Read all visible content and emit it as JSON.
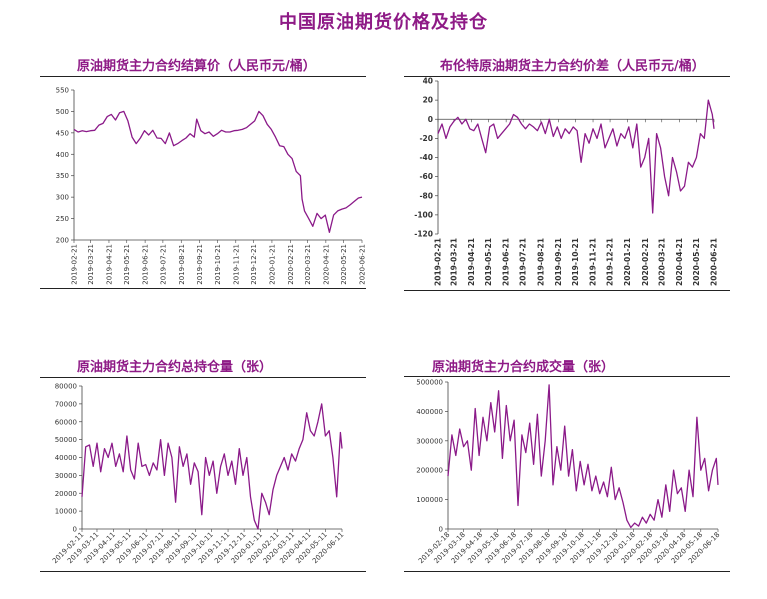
{
  "page": {
    "title": "中国原油期货价格及持仓",
    "title_color": "#8e1a86",
    "line_color": "#8b1a89"
  },
  "chart_data": [
    {
      "id": "settle",
      "type": "line",
      "title": "原油期货主力合约结算价（人民币元/桶）",
      "ylim": [
        200,
        550
      ],
      "yticks": [
        200,
        250,
        300,
        350,
        400,
        450,
        500,
        550
      ],
      "xlim": [
        "2019-02-21",
        "2020-06-21"
      ],
      "xtick_labels": [
        "2019-02-21",
        "2019-03-21",
        "2019-04-21",
        "2019-05-21",
        "2019-06-21",
        "2019-07-21",
        "2019-08-21",
        "2019-09-21",
        "2019-10-21",
        "2019-11-21",
        "2019-12-21",
        "2020-01-21",
        "2020-02-21",
        "2020-03-21",
        "2020-04-21",
        "2020-05-21",
        "2020-06-21"
      ],
      "grid": false,
      "series": [
        {
          "x": [
            "2019-02-21",
            "2019-02-28",
            "2019-03-07",
            "2019-03-14",
            "2019-03-21",
            "2019-03-28",
            "2019-04-04",
            "2019-04-11",
            "2019-04-18",
            "2019-04-25",
            "2019-05-02",
            "2019-05-09",
            "2019-05-16",
            "2019-05-23",
            "2019-05-30",
            "2019-06-06",
            "2019-06-13",
            "2019-06-20",
            "2019-06-27",
            "2019-07-04",
            "2019-07-11",
            "2019-07-18",
            "2019-07-25",
            "2019-08-01",
            "2019-08-08",
            "2019-08-15",
            "2019-08-22",
            "2019-08-29",
            "2019-09-05",
            "2019-09-12",
            "2019-09-16",
            "2019-09-23",
            "2019-09-30",
            "2019-10-07",
            "2019-10-14",
            "2019-10-21",
            "2019-10-28",
            "2019-11-04",
            "2019-11-11",
            "2019-11-18",
            "2019-11-25",
            "2019-12-02",
            "2019-12-09",
            "2019-12-16",
            "2019-12-23",
            "2019-12-30",
            "2020-01-06",
            "2020-01-13",
            "2020-01-20",
            "2020-01-27",
            "2020-02-03",
            "2020-02-10",
            "2020-02-17",
            "2020-02-24",
            "2020-03-02",
            "2020-03-09",
            "2020-03-12",
            "2020-03-16",
            "2020-03-23",
            "2020-03-30",
            "2020-04-06",
            "2020-04-13",
            "2020-04-20",
            "2020-04-27",
            "2020-05-04",
            "2020-05-11",
            "2020-05-18",
            "2020-05-25",
            "2020-06-01",
            "2020-06-08",
            "2020-06-15",
            "2020-06-21"
          ],
          "y": [
            458,
            452,
            455,
            453,
            455,
            456,
            468,
            472,
            488,
            493,
            480,
            497,
            500,
            478,
            440,
            425,
            438,
            455,
            445,
            456,
            438,
            437,
            425,
            450,
            420,
            425,
            432,
            438,
            448,
            440,
            482,
            455,
            448,
            452,
            442,
            448,
            456,
            452,
            452,
            455,
            456,
            458,
            462,
            470,
            478,
            500,
            490,
            470,
            458,
            440,
            420,
            418,
            400,
            390,
            360,
            350,
            295,
            268,
            250,
            232,
            262,
            250,
            258,
            218,
            258,
            268,
            272,
            275,
            282,
            290,
            298,
            300
          ]
        }
      ]
    },
    {
      "id": "spread",
      "type": "line",
      "title": "布伦特原油期货主力合约价差（人民币元/桶）",
      "ylim": [
        -120,
        40
      ],
      "yticks": [
        -120,
        -100,
        -80,
        -60,
        -40,
        -20,
        0,
        20,
        40
      ],
      "xlim": [
        "2019-02-21",
        "2020-06-21"
      ],
      "xtick_labels": [
        "2019-02-21",
        "2019-03-21",
        "2019-04-21",
        "2019-05-21",
        "2019-06-21",
        "2019-07-21",
        "2019-08-21",
        "2019-09-21",
        "2019-10-21",
        "2019-11-21",
        "2019-12-21",
        "2020-01-21",
        "2020-02-21",
        "2020-03-21",
        "2020-04-21",
        "2020-05-21",
        "2020-06-21"
      ],
      "grid": false,
      "series": [
        {
          "x": [
            "2019-02-21",
            "2019-02-28",
            "2019-03-07",
            "2019-03-14",
            "2019-03-21",
            "2019-03-28",
            "2019-04-04",
            "2019-04-11",
            "2019-04-18",
            "2019-04-25",
            "2019-05-02",
            "2019-05-09",
            "2019-05-16",
            "2019-05-23",
            "2019-05-30",
            "2019-06-06",
            "2019-06-13",
            "2019-06-20",
            "2019-06-27",
            "2019-07-04",
            "2019-07-11",
            "2019-07-18",
            "2019-07-25",
            "2019-08-01",
            "2019-08-08",
            "2019-08-15",
            "2019-08-22",
            "2019-08-29",
            "2019-09-05",
            "2019-09-12",
            "2019-09-19",
            "2019-09-26",
            "2019-10-03",
            "2019-10-10",
            "2019-10-17",
            "2019-10-24",
            "2019-10-31",
            "2019-11-07",
            "2019-11-14",
            "2019-11-21",
            "2019-11-28",
            "2019-12-05",
            "2019-12-12",
            "2019-12-19",
            "2019-12-26",
            "2020-01-02",
            "2020-01-09",
            "2020-01-16",
            "2020-01-23",
            "2020-01-30",
            "2020-02-06",
            "2020-02-13",
            "2020-02-20",
            "2020-02-27",
            "2020-03-05",
            "2020-03-12",
            "2020-03-19",
            "2020-03-26",
            "2020-04-02",
            "2020-04-09",
            "2020-04-16",
            "2020-04-23",
            "2020-04-30",
            "2020-05-07",
            "2020-05-14",
            "2020-05-21",
            "2020-05-28",
            "2020-06-04",
            "2020-06-11",
            "2020-06-18",
            "2020-06-21"
          ],
          "y": [
            -15,
            -5,
            -20,
            -8,
            -2,
            2,
            -5,
            0,
            -10,
            -12,
            -5,
            -20,
            -35,
            -8,
            -5,
            -20,
            -15,
            -10,
            -5,
            5,
            2,
            -5,
            -10,
            -5,
            -8,
            -12,
            -3,
            -15,
            0,
            -18,
            -8,
            -20,
            -10,
            -15,
            -8,
            -12,
            -45,
            -15,
            -25,
            -10,
            -20,
            -5,
            -30,
            -20,
            -10,
            -28,
            -15,
            -20,
            -8,
            -30,
            -5,
            -50,
            -40,
            -20,
            -98,
            -15,
            -30,
            -60,
            -80,
            -40,
            -55,
            -75,
            -70,
            -45,
            -50,
            -40,
            -15,
            -20,
            20,
            5,
            -10
          ]
        }
      ]
    },
    {
      "id": "oi",
      "type": "line",
      "title": "原油期货主力合约总持仓量（张）",
      "ylim": [
        0,
        80000
      ],
      "yticks": [
        0,
        10000,
        20000,
        30000,
        40000,
        50000,
        60000,
        70000,
        80000
      ],
      "xlim": [
        "2019-02-11",
        "2020-06-11"
      ],
      "xtick_labels": [
        "2019-02-11",
        "2019-03-11",
        "2019-04-11",
        "2019-05-11",
        "2019-06-11",
        "2019-07-11",
        "2019-08-11",
        "2019-09-11",
        "2019-10-11",
        "2019-11-11",
        "2019-12-11",
        "2020-01-11",
        "2020-02-11",
        "2020-03-11",
        "2020-04-11",
        "2020-05-11",
        "2020-06-11"
      ],
      "grid": false,
      "series": [
        {
          "x": [
            "2019-02-11",
            "2019-02-18",
            "2019-02-25",
            "2019-03-04",
            "2019-03-11",
            "2019-03-18",
            "2019-03-25",
            "2019-04-01",
            "2019-04-08",
            "2019-04-15",
            "2019-04-22",
            "2019-04-29",
            "2019-05-06",
            "2019-05-13",
            "2019-05-20",
            "2019-05-27",
            "2019-06-03",
            "2019-06-10",
            "2019-06-17",
            "2019-06-24",
            "2019-07-01",
            "2019-07-08",
            "2019-07-15",
            "2019-07-22",
            "2019-07-29",
            "2019-08-05",
            "2019-08-12",
            "2019-08-19",
            "2019-08-26",
            "2019-09-02",
            "2019-09-09",
            "2019-09-16",
            "2019-09-23",
            "2019-09-30",
            "2019-10-07",
            "2019-10-14",
            "2019-10-21",
            "2019-10-28",
            "2019-11-04",
            "2019-11-11",
            "2019-11-18",
            "2019-11-25",
            "2019-12-02",
            "2019-12-09",
            "2019-12-16",
            "2019-12-23",
            "2019-12-30",
            "2020-01-06",
            "2020-01-13",
            "2020-01-20",
            "2020-01-27",
            "2020-02-03",
            "2020-02-10",
            "2020-02-17",
            "2020-02-24",
            "2020-03-02",
            "2020-03-09",
            "2020-03-16",
            "2020-03-23",
            "2020-03-30",
            "2020-04-06",
            "2020-04-13",
            "2020-04-20",
            "2020-04-27",
            "2020-05-04",
            "2020-05-11",
            "2020-05-18",
            "2020-05-25",
            "2020-06-01",
            "2020-06-08",
            "2020-06-11"
          ],
          "y": [
            18000,
            46000,
            47000,
            35000,
            48000,
            32000,
            45000,
            40000,
            48000,
            35000,
            42000,
            32000,
            52000,
            33000,
            28000,
            48000,
            35000,
            36000,
            30000,
            37000,
            33000,
            50000,
            30000,
            48000,
            40000,
            15000,
            46000,
            35000,
            42000,
            25000,
            37000,
            32000,
            8000,
            40000,
            30000,
            38000,
            20000,
            35000,
            42000,
            30000,
            38000,
            25000,
            45000,
            30000,
            40000,
            18000,
            5000,
            0,
            20000,
            15000,
            8000,
            22000,
            30000,
            35000,
            40000,
            33000,
            42000,
            38000,
            45000,
            50000,
            65000,
            55000,
            52000,
            60000,
            70000,
            52000,
            55000,
            40000,
            18000,
            54000,
            45000
          ]
        }
      ]
    },
    {
      "id": "volume",
      "type": "line",
      "title": "原油期货主力合约成交量（张）",
      "ylim": [
        0,
        500000
      ],
      "yticks": [
        0,
        100000,
        200000,
        300000,
        400000,
        500000
      ],
      "xlim": [
        "2019-02-18",
        "2020-06-18"
      ],
      "xtick_labels": [
        "2019-02-18",
        "2019-03-18",
        "2019-04-18",
        "2019-05-18",
        "2019-06-18",
        "2019-07-18",
        "2019-08-18",
        "2019-09-18",
        "2019-10-18",
        "2019-11-18",
        "2019-12-18",
        "2020-01-18",
        "2020-02-18",
        "2020-03-18",
        "2020-04-18",
        "2020-05-18",
        "2020-06-18"
      ],
      "grid": false,
      "series": [
        {
          "x": [
            "2019-02-18",
            "2019-02-25",
            "2019-03-04",
            "2019-03-11",
            "2019-03-18",
            "2019-03-25",
            "2019-04-01",
            "2019-04-08",
            "2019-04-15",
            "2019-04-22",
            "2019-04-29",
            "2019-05-06",
            "2019-05-13",
            "2019-05-20",
            "2019-05-27",
            "2019-06-03",
            "2019-06-10",
            "2019-06-17",
            "2019-06-24",
            "2019-07-01",
            "2019-07-08",
            "2019-07-15",
            "2019-07-22",
            "2019-07-29",
            "2019-08-05",
            "2019-08-12",
            "2019-08-19",
            "2019-08-26",
            "2019-09-02",
            "2019-09-09",
            "2019-09-16",
            "2019-09-23",
            "2019-09-30",
            "2019-10-07",
            "2019-10-14",
            "2019-10-21",
            "2019-10-28",
            "2019-11-04",
            "2019-11-11",
            "2019-11-18",
            "2019-11-25",
            "2019-12-02",
            "2019-12-09",
            "2019-12-16",
            "2019-12-23",
            "2019-12-30",
            "2020-01-06",
            "2020-01-13",
            "2020-01-20",
            "2020-01-27",
            "2020-02-03",
            "2020-02-10",
            "2020-02-17",
            "2020-02-24",
            "2020-03-02",
            "2020-03-09",
            "2020-03-16",
            "2020-03-23",
            "2020-03-30",
            "2020-04-06",
            "2020-04-13",
            "2020-04-20",
            "2020-04-27",
            "2020-05-04",
            "2020-05-11",
            "2020-05-18",
            "2020-05-25",
            "2020-06-01",
            "2020-06-08",
            "2020-06-15",
            "2020-06-18"
          ],
          "y": [
            180000,
            320000,
            250000,
            340000,
            280000,
            300000,
            200000,
            410000,
            250000,
            380000,
            300000,
            430000,
            330000,
            470000,
            240000,
            420000,
            300000,
            370000,
            80000,
            320000,
            260000,
            360000,
            220000,
            390000,
            180000,
            300000,
            490000,
            150000,
            280000,
            200000,
            350000,
            180000,
            270000,
            130000,
            230000,
            150000,
            220000,
            130000,
            180000,
            120000,
            160000,
            110000,
            210000,
            100000,
            140000,
            90000,
            30000,
            5000,
            20000,
            10000,
            40000,
            20000,
            50000,
            30000,
            100000,
            40000,
            150000,
            60000,
            200000,
            120000,
            140000,
            60000,
            200000,
            110000,
            380000,
            200000,
            240000,
            130000,
            200000,
            240000,
            150000
          ]
        }
      ]
    }
  ]
}
